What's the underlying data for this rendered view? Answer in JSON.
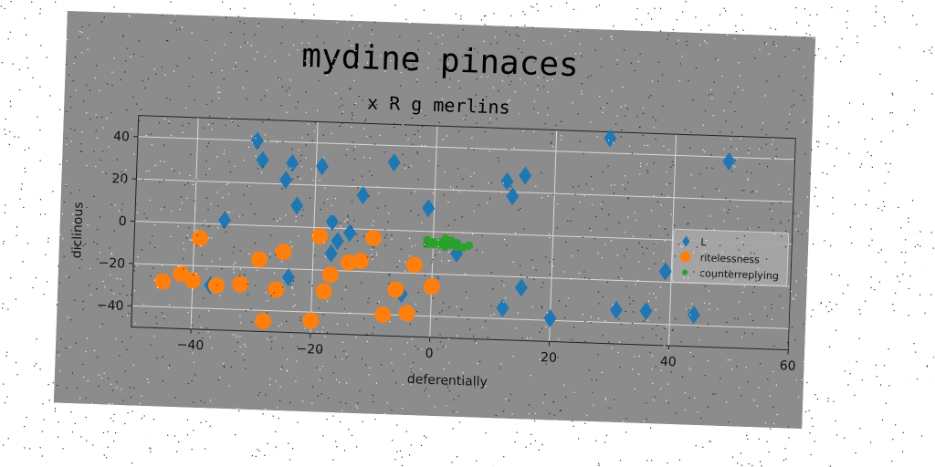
{
  "chart_data": {
    "type": "scatter",
    "title": "mydine pinaces",
    "subtitle": "x R g merlins",
    "xlabel": "deferentially",
    "ylabel": "diclinous",
    "xlim": [
      -50,
      60
    ],
    "ylim": [
      -50,
      50
    ],
    "xticks": [
      -40,
      -20,
      0,
      20,
      40,
      60
    ],
    "yticks": [
      -40,
      -20,
      0,
      20,
      40
    ],
    "grid": true,
    "legend_position": "right",
    "background": "#8c8c8c",
    "series": [
      {
        "name": "L",
        "marker": "diamond",
        "color": "#1f77b4",
        "points": [
          [
            -30,
            40
          ],
          [
            -29,
            31
          ],
          [
            -24,
            30
          ],
          [
            -25,
            22
          ],
          [
            -23,
            10
          ],
          [
            -19,
            29
          ],
          [
            -35,
            2
          ],
          [
            -17,
            3
          ],
          [
            -14,
            -2
          ],
          [
            -16,
            -6
          ],
          [
            -17,
            -12
          ],
          [
            -12,
            16
          ],
          [
            -10,
            -5
          ],
          [
            -7,
            32
          ],
          [
            -24,
            -24
          ],
          [
            -5,
            -30
          ],
          [
            -1,
            11
          ],
          [
            4,
            -10
          ],
          [
            12,
            25
          ],
          [
            13,
            18
          ],
          [
            15,
            28
          ],
          [
            12,
            -35
          ],
          [
            15,
            -25
          ],
          [
            20,
            -39
          ],
          [
            29,
            47
          ],
          [
            31,
            -34
          ],
          [
            36,
            -34
          ],
          [
            39,
            -15
          ],
          [
            44,
            -35
          ],
          [
            49,
            38
          ],
          [
            49,
            -15
          ],
          [
            -37,
            -29
          ]
        ]
      },
      {
        "name": "ritelessness",
        "marker": "circle",
        "color": "#ff7f0e",
        "points": [
          [
            -45,
            -28
          ],
          [
            -42,
            -24
          ],
          [
            -40,
            -27
          ],
          [
            -39,
            -7
          ],
          [
            -36,
            -29
          ],
          [
            -32,
            -28
          ],
          [
            -29,
            -16
          ],
          [
            -28,
            -45
          ],
          [
            -26,
            -30
          ],
          [
            -25,
            -12
          ],
          [
            -20,
            -44
          ],
          [
            -19,
            -4
          ],
          [
            -18,
            -30
          ],
          [
            -17,
            -22
          ],
          [
            -14,
            -16
          ],
          [
            -12,
            -15
          ],
          [
            -10,
            -4
          ],
          [
            -8,
            -40
          ],
          [
            -6,
            -28
          ],
          [
            -4,
            -39
          ],
          [
            -3,
            -16
          ],
          [
            0,
            -26
          ]
        ]
      },
      {
        "name": "counterreplying",
        "marker": "point",
        "color": "#2ca02c",
        "points": [
          [
            -1,
            -4
          ],
          [
            0,
            -6
          ],
          [
            1,
            -5
          ],
          [
            2,
            -7
          ],
          [
            2,
            -3
          ],
          [
            3,
            -6
          ],
          [
            4,
            -5
          ],
          [
            5,
            -7
          ],
          [
            1,
            -6
          ],
          [
            0,
            -5
          ],
          [
            3,
            -4
          ],
          [
            4,
            -7
          ],
          [
            6,
            -6
          ],
          [
            2,
            -5
          ],
          [
            -1,
            -6
          ]
        ]
      }
    ]
  }
}
